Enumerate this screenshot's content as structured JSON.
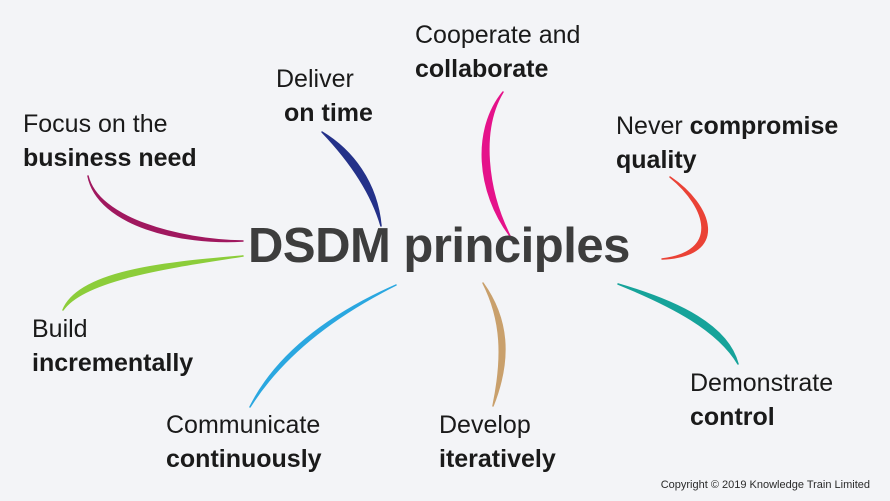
{
  "title": "DSDM principles",
  "principles": [
    {
      "line1": "Focus on the",
      "line2": "business need",
      "color": "#a0185f"
    },
    {
      "line1": "Deliver",
      "line2": "on time",
      "color": "#243189"
    },
    {
      "line1": "Cooperate and",
      "line2": "collaborate",
      "color": "#e5128a"
    },
    {
      "line1a": "Never ",
      "line1b": "compromise",
      "line2": "quality",
      "color": "#ea4236"
    },
    {
      "line1": "Build",
      "line2": "incrementally",
      "color": "#8ccd3a"
    },
    {
      "line1": "Communicate",
      "line2": "continuously",
      "color": "#2aa7e0"
    },
    {
      "line1": "Develop",
      "line2": "iteratively",
      "color": "#c9a06c"
    },
    {
      "line1": "Demonstrate",
      "line2": "control",
      "color": "#16a39a"
    }
  ],
  "copyright": "Copyright © 2019 Knowledge Train Limited"
}
